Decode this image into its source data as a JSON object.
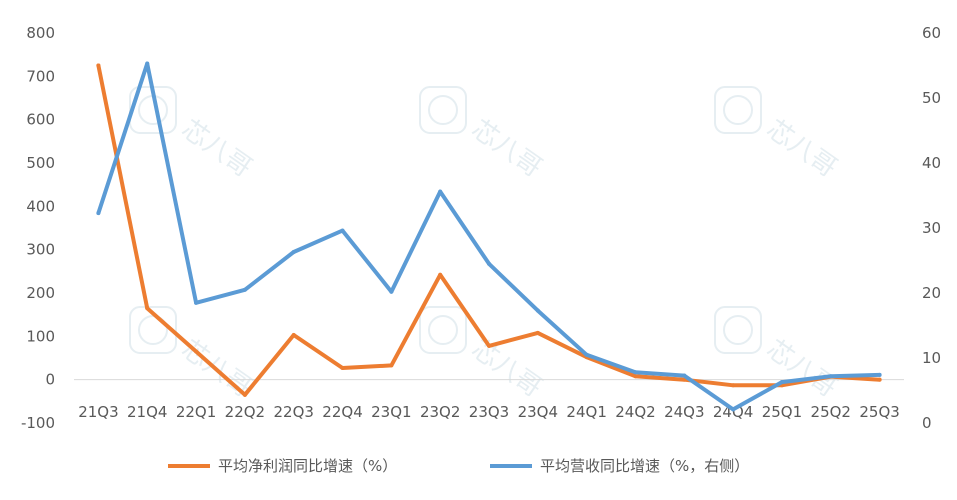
{
  "chart_data": {
    "type": "line",
    "categories": [
      "21Q3",
      "21Q4",
      "22Q1",
      "22Q2",
      "22Q3",
      "22Q4",
      "23Q1",
      "23Q2",
      "23Q3",
      "23Q4",
      "24Q1",
      "24Q2",
      "24Q3",
      "24Q4",
      "25Q1",
      "25Q2",
      "25Q3"
    ],
    "series": [
      {
        "name": "平均净利润同比增速（%）",
        "color": "#ed7d31",
        "axis": "left",
        "values": [
          725,
          165,
          65,
          -35,
          103,
          27,
          33,
          242,
          78,
          108,
          52,
          8,
          0,
          -13,
          -13,
          7,
          0
        ]
      },
      {
        "name": "平均营收同比增速（%，右侧）",
        "color": "#5b9bd5",
        "axis": "right",
        "values": [
          32.3,
          55.3,
          18.5,
          20.5,
          26.3,
          29.6,
          20.2,
          35.6,
          24.5,
          17.3,
          10.5,
          7.8,
          7.3,
          2.1,
          6.3,
          7.2,
          7.4
        ]
      }
    ],
    "y_left": {
      "ylim": [
        -100,
        800
      ],
      "ticks": [
        -100,
        0,
        100,
        200,
        300,
        400,
        500,
        600,
        700,
        800
      ]
    },
    "y_right": {
      "ylim": [
        0,
        60
      ],
      "ticks": [
        0,
        10,
        20,
        30,
        40,
        50,
        60
      ]
    },
    "grid": false,
    "legend_position": "bottom"
  },
  "watermark": {
    "text": "芯八哥"
  }
}
